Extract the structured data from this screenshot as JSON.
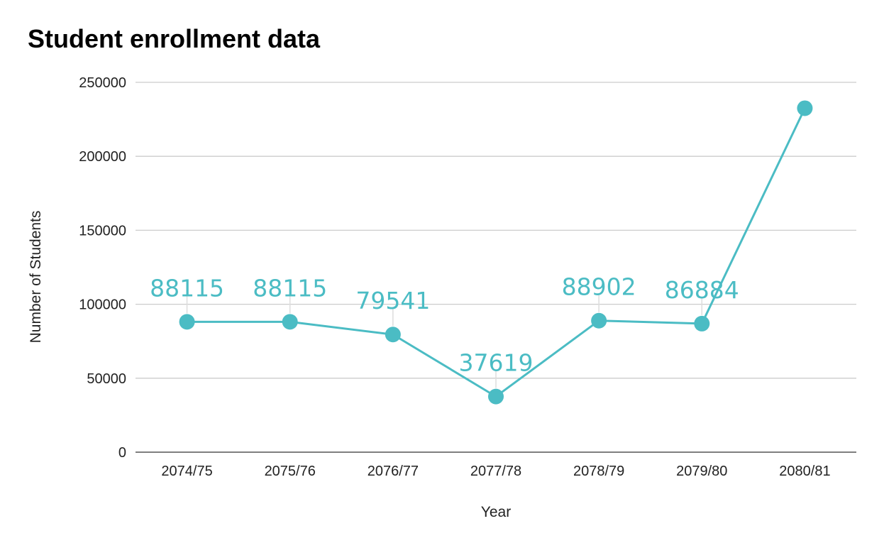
{
  "chart_data": {
    "type": "line",
    "title": "Student enrollment data",
    "xlabel": "Year",
    "ylabel": "Number of Students",
    "categories": [
      "2074/75",
      "2075/76",
      "2076/77",
      "2077/78",
      "2078/79",
      "2079/80",
      "2080/81"
    ],
    "series": [
      {
        "values": [
          88115,
          88115,
          79541,
          37619,
          88902,
          86884,
          232500
        ],
        "data_labels": [
          "88115",
          "88115",
          "79541",
          "37619",
          "88902",
          "86884",
          ""
        ],
        "color": "#4BBCC4"
      }
    ],
    "yticks": [
      0,
      50000,
      100000,
      150000,
      200000,
      250000
    ],
    "ylim": [
      0,
      250000
    ],
    "grid": true,
    "legend": "none"
  }
}
